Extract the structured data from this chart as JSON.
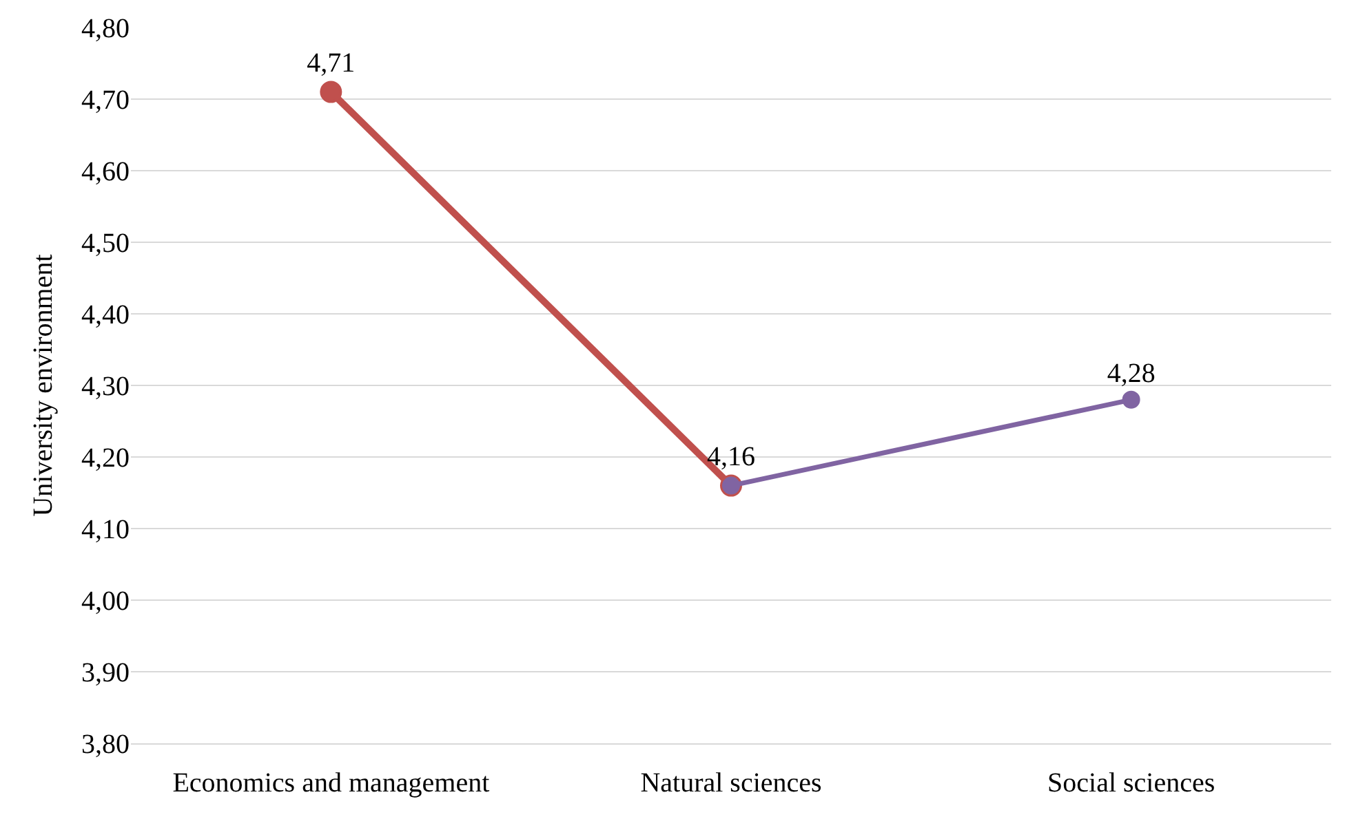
{
  "chart_data": {
    "type": "line",
    "ylabel": "University environment",
    "categories": [
      "Economics and management",
      "Natural sciences",
      "Social sciences"
    ],
    "series": [
      {
        "color": "#c0504d",
        "values": [
          4.71,
          4.16,
          null
        ],
        "value_labels": [
          "4,71",
          "4,16",
          null
        ]
      },
      {
        "color": "#8064a2",
        "values": [
          null,
          4.16,
          4.28
        ],
        "value_labels": [
          null,
          null,
          "4,28"
        ]
      }
    ],
    "ylim": [
      3.8,
      4.8
    ],
    "yticks": [
      {
        "value": 3.8,
        "label": "3,80"
      },
      {
        "value": 3.9,
        "label": "3,90"
      },
      {
        "value": 4.0,
        "label": "4,00"
      },
      {
        "value": 4.1,
        "label": "4,10"
      },
      {
        "value": 4.2,
        "label": "4,20"
      },
      {
        "value": 4.3,
        "label": "4,30"
      },
      {
        "value": 4.4,
        "label": "4,40"
      },
      {
        "value": 4.5,
        "label": "4,50"
      },
      {
        "value": 4.6,
        "label": "4,60"
      },
      {
        "value": 4.7,
        "label": "4,70"
      },
      {
        "value": 4.8,
        "label": "4,80"
      }
    ],
    "grid": "y",
    "marker": "circle",
    "line_style": "solid"
  }
}
